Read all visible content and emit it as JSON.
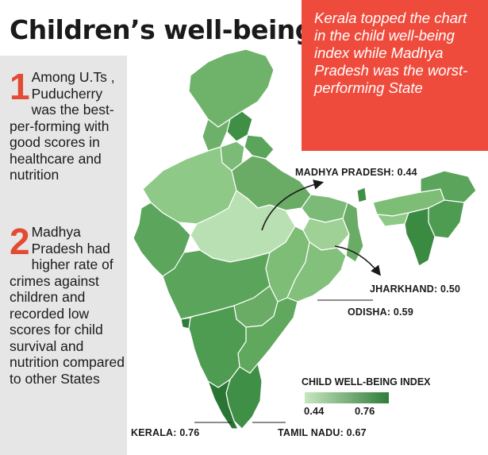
{
  "title": "Children’s well-being",
  "notes": [
    {
      "number": "1",
      "text": "Among U.Ts , Puducherry was the best-per-forming with good scores in healthcare and nutrition"
    },
    {
      "number": "2",
      "text": "Madhya Pradesh had higher rate of crimes against children and recorded low scores for child survival and nutrition compared to other States"
    }
  ],
  "callout": "Kerala topped the chart in the child well-being index while Madhya Pradesh was the worst-performing State",
  "labels": {
    "madhya_pradesh": "MADHYA PRADESH: 0.44",
    "jharkhand": "JHARKHAND: 0.50",
    "odisha": "ODISHA: 0.59",
    "kerala": "KERALA: 0.76",
    "tamil_nadu": "TAMIL NADU: 0.67"
  },
  "legend": {
    "title": "CHILD WELL-BEING INDEX",
    "min": "0.44",
    "max": "0.76",
    "color_low": "#c7e6c0",
    "color_high": "#2f7d3a"
  },
  "colors": {
    "accent": "#ef4b3c",
    "number": "#e34a33",
    "sidebar": "#e6e6e6"
  }
}
